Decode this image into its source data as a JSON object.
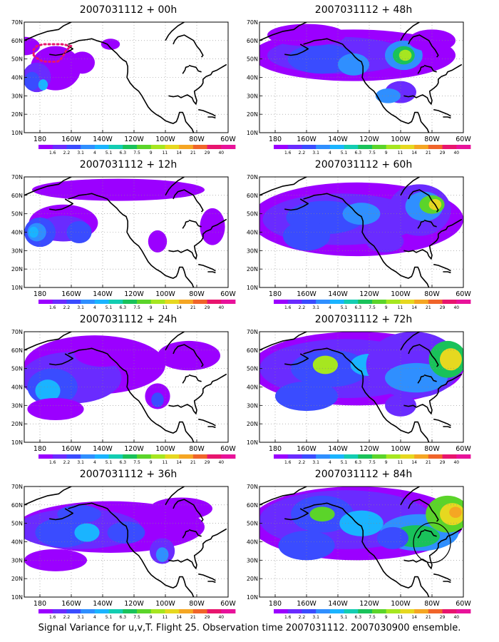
{
  "figure": {
    "footer": "Signal Variance for u,v,T. Flight 25. Observation time 2007031112. 2007030900 ensemble."
  },
  "axes": {
    "lat_labels": [
      "70N",
      "60N",
      "50N",
      "40N",
      "30N",
      "20N",
      "10N"
    ],
    "lon_labels": [
      "180",
      "160W",
      "140W",
      "120W",
      "100W",
      "80W",
      "60W"
    ],
    "lat_range": [
      10,
      70
    ],
    "lon_range": [
      170,
      300
    ]
  },
  "colorbar": {
    "labels": [
      "1.6",
      "2.2",
      "3.1",
      "4",
      "5.1",
      "6.3",
      "7.5",
      "9",
      "11",
      "14",
      "21",
      "29",
      "40"
    ],
    "colors": [
      "#9b00ff",
      "#6a2bff",
      "#3a4cff",
      "#2f8fff",
      "#1ab4ff",
      "#13cdb2",
      "#19c25a",
      "#5bd42a",
      "#a6e620",
      "#e6d820",
      "#f5a623",
      "#f0642a",
      "#e8156e",
      "#e8129a"
    ]
  },
  "panels": [
    {
      "title": "2007031112 + 00h",
      "blobs": [
        [
          190,
          45,
          16,
          12,
          0
        ],
        [
          178,
          40,
          9,
          8,
          1
        ],
        [
          175,
          38,
          5,
          5,
          2
        ],
        [
          182,
          36,
          3,
          3,
          4
        ],
        [
          207,
          48,
          8,
          6,
          0
        ],
        [
          170,
          57,
          10,
          5,
          0
        ],
        [
          225,
          58,
          6,
          3,
          0
        ]
      ],
      "marked_area": true,
      "circle": false
    },
    {
      "title": "2007031112 + 12h",
      "blobs": [
        [
          230,
          63,
          55,
          6,
          0
        ],
        [
          195,
          45,
          22,
          10,
          0
        ],
        [
          195,
          42,
          16,
          7,
          1
        ],
        [
          180,
          40,
          10,
          8,
          2
        ],
        [
          178,
          40,
          6,
          5,
          3
        ],
        [
          176,
          40,
          3,
          3,
          4
        ],
        [
          205,
          40,
          8,
          6,
          2
        ],
        [
          255,
          35,
          6,
          6,
          0
        ],
        [
          290,
          43,
          8,
          10,
          0
        ]
      ],
      "marked_area": false,
      "circle": false
    },
    {
      "title": "2007031112 + 24h",
      "blobs": [
        [
          215,
          52,
          45,
          16,
          0
        ],
        [
          200,
          45,
          32,
          14,
          1
        ],
        [
          188,
          40,
          16,
          10,
          2
        ],
        [
          185,
          38,
          8,
          6,
          4
        ],
        [
          220,
          58,
          18,
          7,
          0
        ],
        [
          255,
          35,
          8,
          7,
          0
        ],
        [
          255,
          33,
          4,
          4,
          2
        ],
        [
          275,
          57,
          20,
          8,
          0
        ],
        [
          190,
          28,
          18,
          6,
          0
        ]
      ],
      "marked_area": false,
      "circle": false
    },
    {
      "title": "2007031112 + 36h",
      "blobs": [
        [
          225,
          48,
          60,
          14,
          0
        ],
        [
          205,
          47,
          40,
          11,
          1
        ],
        [
          195,
          45,
          18,
          8,
          2
        ],
        [
          205,
          55,
          14,
          5,
          2
        ],
        [
          210,
          45,
          8,
          5,
          4
        ],
        [
          235,
          45,
          12,
          6,
          2
        ],
        [
          258,
          35,
          8,
          7,
          1
        ],
        [
          258,
          33,
          4,
          4,
          3
        ],
        [
          190,
          30,
          20,
          6,
          0
        ],
        [
          270,
          58,
          20,
          6,
          0
        ]
      ],
      "marked_area": false,
      "circle": false
    },
    {
      "title": "2007031112 + 48h",
      "blobs": [
        [
          230,
          52,
          65,
          14,
          0
        ],
        [
          220,
          52,
          45,
          10,
          1
        ],
        [
          210,
          50,
          22,
          8,
          2
        ],
        [
          230,
          47,
          10,
          6,
          3
        ],
        [
          262,
          52,
          12,
          8,
          3
        ],
        [
          262,
          52,
          7,
          5,
          6
        ],
        [
          263,
          52,
          4,
          3,
          8
        ],
        [
          260,
          32,
          10,
          6,
          1
        ],
        [
          252,
          30,
          8,
          4,
          3
        ],
        [
          200,
          63,
          25,
          6,
          0
        ],
        [
          280,
          60,
          15,
          6,
          0
        ]
      ],
      "marked_area": false,
      "circle": false
    },
    {
      "title": "2007031112 + 60h",
      "blobs": [
        [
          232,
          47,
          68,
          20,
          0
        ],
        [
          222,
          47,
          50,
          14,
          1
        ],
        [
          212,
          48,
          25,
          9,
          2
        ],
        [
          235,
          50,
          12,
          6,
          3
        ],
        [
          272,
          52,
          20,
          14,
          1
        ],
        [
          275,
          54,
          12,
          8,
          3
        ],
        [
          280,
          55,
          8,
          5,
          7
        ],
        [
          282,
          55,
          4,
          3,
          9
        ],
        [
          200,
          38,
          15,
          8,
          2
        ],
        [
          250,
          35,
          12,
          6,
          1
        ]
      ],
      "marked_area": false,
      "circle": false
    },
    {
      "title": "2007031112 + 72h",
      "blobs": [
        [
          232,
          50,
          68,
          20,
          0
        ],
        [
          225,
          50,
          55,
          16,
          1
        ],
        [
          215,
          50,
          25,
          10,
          2
        ],
        [
          212,
          52,
          8,
          5,
          8
        ],
        [
          240,
          52,
          12,
          6,
          4
        ],
        [
          268,
          52,
          30,
          18,
          1
        ],
        [
          270,
          45,
          20,
          8,
          3
        ],
        [
          290,
          55,
          12,
          10,
          6
        ],
        [
          292,
          55,
          7,
          6,
          9
        ],
        [
          200,
          35,
          20,
          8,
          2
        ],
        [
          260,
          30,
          10,
          6,
          1
        ]
      ],
      "marked_area": false,
      "circle": false
    },
    {
      "title": "2007031112 + 84h",
      "blobs": [
        [
          232,
          50,
          68,
          20,
          0
        ],
        [
          225,
          52,
          55,
          16,
          1
        ],
        [
          210,
          55,
          20,
          10,
          2
        ],
        [
          210,
          55,
          8,
          4,
          7
        ],
        [
          235,
          50,
          14,
          7,
          4
        ],
        [
          272,
          45,
          25,
          10,
          3
        ],
        [
          270,
          43,
          15,
          6,
          6
        ],
        [
          290,
          55,
          14,
          10,
          7
        ],
        [
          293,
          55,
          8,
          6,
          9
        ],
        [
          295,
          56,
          4,
          3,
          10
        ],
        [
          200,
          38,
          18,
          8,
          2
        ],
        [
          255,
          42,
          10,
          6,
          2
        ]
      ],
      "marked_area": false,
      "circle": true
    }
  ]
}
